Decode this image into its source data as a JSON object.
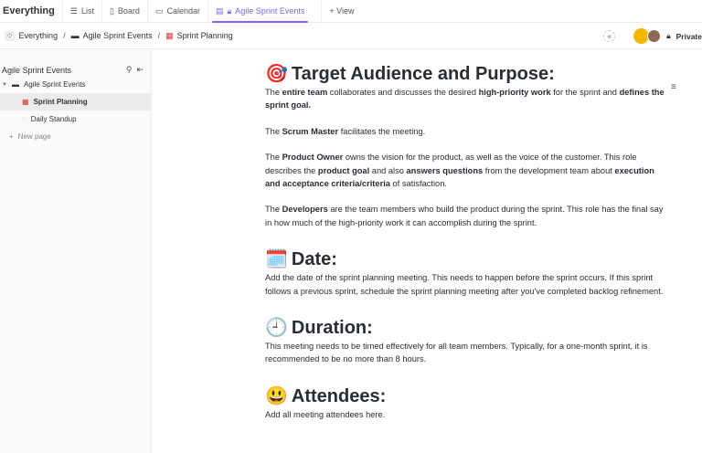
{
  "topbar": {
    "title": "Everything",
    "tabs": [
      {
        "label": "List",
        "icon": "list-icon"
      },
      {
        "label": "Board",
        "icon": "board-icon"
      },
      {
        "label": "Calendar",
        "icon": "calendar-icon"
      },
      {
        "label": "Agile Sprint Events",
        "icon": "doc-lock-icon",
        "active": true
      }
    ],
    "add_view": "+ View"
  },
  "breadcrumb": [
    "Everything",
    "Agile Sprint Events",
    "Sprint Planning"
  ],
  "header_right": {
    "privacy": "Private"
  },
  "sidebar": {
    "title": "Agile Sprint Events",
    "parent": "Agile Sprint Events",
    "pages": [
      "Sprint Planning",
      "Daily Standup"
    ],
    "new_page": "New page"
  },
  "doc": {
    "sections": [
      {
        "emoji": "🎯",
        "heading": "Target Audience and Purpose:",
        "paras": [
          [
            {
              "t": "The "
            },
            {
              "t": "entire team",
              "b": 1
            },
            {
              "t": " collaborates and discusses the desired "
            },
            {
              "t": "high-priority work",
              "b": 1
            },
            {
              "t": " for the sprint and "
            },
            {
              "t": "defines the sprint goal.",
              "b": 1
            }
          ],
          [
            {
              "t": "The "
            },
            {
              "t": "Scrum Master",
              "b": 1
            },
            {
              "t": " facilitates the meeting."
            }
          ],
          [
            {
              "t": "The "
            },
            {
              "t": "Product Owner",
              "b": 1
            },
            {
              "t": " owns the vision for the product, as well as the voice of the customer. This role describes the "
            },
            {
              "t": "product goal",
              "b": 1
            },
            {
              "t": " and also "
            },
            {
              "t": "answers questions",
              "b": 1
            },
            {
              "t": " from the development team about "
            },
            {
              "t": "execution and acceptance criteria/criteria",
              "b": 1
            },
            {
              "t": " of satisfaction."
            }
          ],
          [
            {
              "t": "The "
            },
            {
              "t": "Developers",
              "b": 1
            },
            {
              "t": " are the team members who build the product during the sprint. This role has the final say in how much of the high-priority work it can accomplish during the sprint."
            }
          ]
        ]
      },
      {
        "emoji": "🗓️",
        "heading": "Date:",
        "paras": [
          [
            {
              "t": "Add the date of the sprint planning meeting. This needs to happen before the sprint occurs. If this sprint follows a previous sprint, schedule the sprint planning meeting after you've completed backlog refinement."
            }
          ]
        ]
      },
      {
        "emoji": "🕘",
        "heading": "Duration:",
        "paras": [
          [
            {
              "t": "This meeting needs to be timed effectively for all team members. Typically, for a one-month sprint, it is recommended to be no more than 8 hours."
            }
          ]
        ]
      },
      {
        "emoji": "😃",
        "heading": "Attendees:",
        "paras": [
          [
            {
              "t": "Add all meeting attendees here."
            }
          ]
        ]
      }
    ]
  },
  "colors": {
    "accent": "#7b68ee"
  }
}
